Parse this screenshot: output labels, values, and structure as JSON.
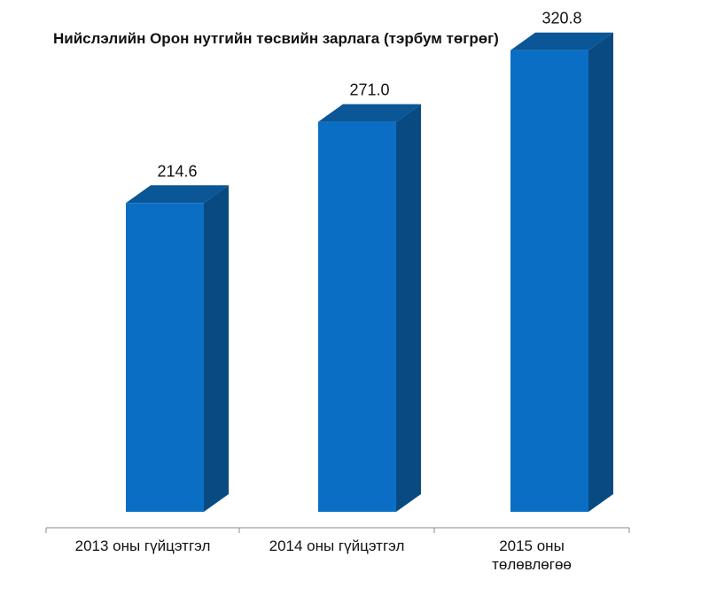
{
  "chart_data": {
    "type": "bar",
    "title": "Нийслэлийн Орон нутгийн төсвийн зарлага (тэрбум төгрөг)",
    "categories": [
      [
        "2013 оны гүйцэтгэл"
      ],
      [
        "2014 оны гүйцэтгэл"
      ],
      [
        "2015 оны",
        "төлөвлөгөө"
      ]
    ],
    "values": [
      214.6,
      271.0,
      320.8
    ],
    "value_labels": [
      "214.6",
      "271.0",
      "320.8"
    ],
    "ylim": [
      0,
      340
    ],
    "grid": false,
    "legend": "none",
    "style": "3d-column",
    "colors": {
      "front": "#0a6fc4",
      "side": "#0a4a82",
      "top": "#0a5696"
    }
  }
}
